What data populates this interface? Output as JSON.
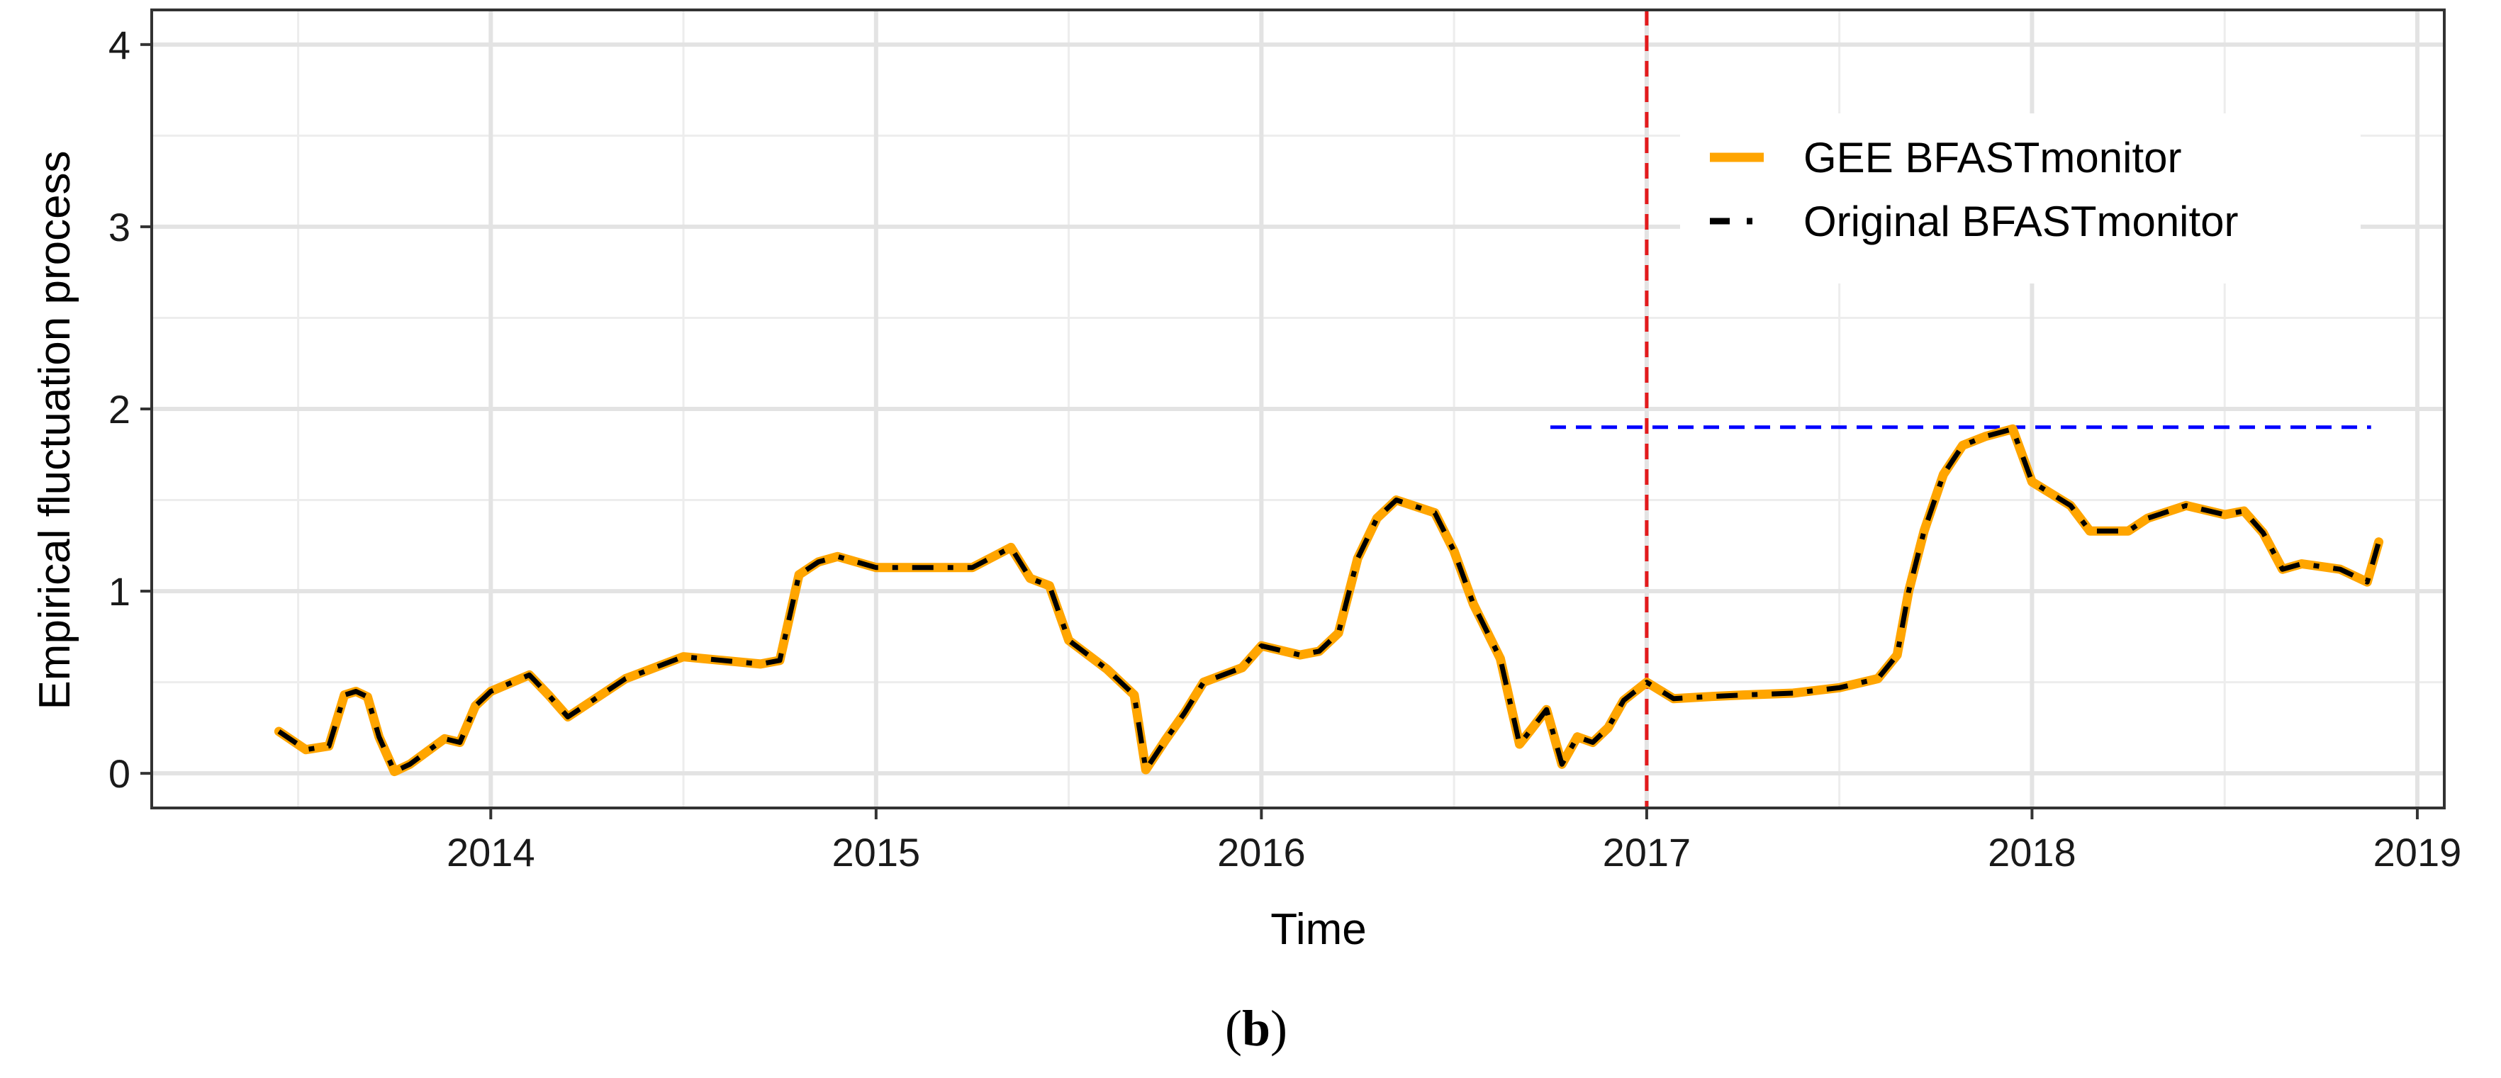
{
  "chart_data": {
    "type": "line",
    "title": "",
    "xlabel": "Time",
    "ylabel": "Empirical fluctuation process",
    "xlim": [
      2013.12,
      2019.07
    ],
    "ylim": [
      -0.19,
      4.19
    ],
    "xticks": [
      2014,
      2015,
      2016,
      2017,
      2018,
      2019
    ],
    "xtick_labels": [
      "2014",
      "2015",
      "2016",
      "2017",
      "2018",
      "2019"
    ],
    "yticks": [
      0,
      1,
      2,
      3,
      4
    ],
    "ytick_labels": [
      "0",
      "1",
      "2",
      "3",
      "4"
    ],
    "grid": true,
    "legend_position": "top-right",
    "series": [
      {
        "name": "GEE BFASTmonitor",
        "color": "#FFA500",
        "style": "solid",
        "x": [
          2013.45,
          2013.52,
          2013.58,
          2013.62,
          2013.65,
          2013.68,
          2013.71,
          2013.75,
          2013.79,
          2013.88,
          2013.92,
          2013.96,
          2014.0,
          2014.1,
          2014.15,
          2014.2,
          2014.35,
          2014.5,
          2014.7,
          2014.75,
          2014.8,
          2014.85,
          2014.9,
          2015.0,
          2015.1,
          2015.25,
          2015.35,
          2015.4,
          2015.45,
          2015.5,
          2015.6,
          2015.67,
          2015.7,
          2015.75,
          2015.8,
          2015.85,
          2015.95,
          2016.0,
          2016.1,
          2016.15,
          2016.2,
          2016.25,
          2016.3,
          2016.35,
          2016.45,
          2016.5,
          2016.55,
          2016.62,
          2016.67,
          2016.7,
          2016.74,
          2016.78,
          2016.82,
          2016.86,
          2016.9,
          2016.94,
          2017.0,
          2017.07,
          2017.15,
          2017.25,
          2017.38,
          2017.5,
          2017.6,
          2017.65,
          2017.68,
          2017.72,
          2017.77,
          2017.82,
          2017.88,
          2017.95,
          2018.0,
          2018.1,
          2018.15,
          2018.25,
          2018.3,
          2018.4,
          2018.5,
          2018.55,
          2018.6,
          2018.65,
          2018.7,
          2018.8,
          2018.87,
          2018.9
        ],
        "y": [
          0.23,
          0.13,
          0.15,
          0.43,
          0.45,
          0.42,
          0.2,
          0.01,
          0.05,
          0.19,
          0.17,
          0.37,
          0.45,
          0.54,
          0.43,
          0.31,
          0.52,
          0.64,
          0.6,
          0.62,
          1.09,
          1.16,
          1.19,
          1.13,
          1.13,
          1.13,
          1.24,
          1.07,
          1.03,
          0.73,
          0.57,
          0.43,
          0.02,
          0.18,
          0.33,
          0.5,
          0.58,
          0.7,
          0.65,
          0.67,
          0.77,
          1.18,
          1.4,
          1.5,
          1.43,
          1.22,
          0.93,
          0.63,
          0.16,
          0.24,
          0.35,
          0.05,
          0.2,
          0.17,
          0.25,
          0.4,
          0.5,
          0.41,
          0.42,
          0.43,
          0.44,
          0.47,
          0.52,
          0.65,
          1.0,
          1.33,
          1.64,
          1.8,
          1.85,
          1.89,
          1.6,
          1.47,
          1.33,
          1.33,
          1.4,
          1.47,
          1.42,
          1.44,
          1.32,
          1.12,
          1.15,
          1.12,
          1.05,
          1.27
        ]
      },
      {
        "name": "Original BFASTmonitor",
        "color": "#000000",
        "style": "dashed",
        "x": [
          2013.45,
          2013.52,
          2013.58,
          2013.62,
          2013.65,
          2013.68,
          2013.71,
          2013.75,
          2013.79,
          2013.88,
          2013.92,
          2013.96,
          2014.0,
          2014.1,
          2014.15,
          2014.2,
          2014.35,
          2014.5,
          2014.7,
          2014.75,
          2014.8,
          2014.85,
          2014.9,
          2015.0,
          2015.1,
          2015.25,
          2015.35,
          2015.4,
          2015.45,
          2015.5,
          2015.6,
          2015.67,
          2015.7,
          2015.75,
          2015.8,
          2015.85,
          2015.95,
          2016.0,
          2016.1,
          2016.15,
          2016.2,
          2016.25,
          2016.3,
          2016.35,
          2016.45,
          2016.5,
          2016.55,
          2016.62,
          2016.67,
          2016.7,
          2016.74,
          2016.78,
          2016.82,
          2016.86,
          2016.9,
          2016.94,
          2017.0,
          2017.07,
          2017.15,
          2017.25,
          2017.38,
          2017.5,
          2017.6,
          2017.65,
          2017.68,
          2017.72,
          2017.77,
          2017.82,
          2017.88,
          2017.95,
          2018.0,
          2018.1,
          2018.15,
          2018.25,
          2018.3,
          2018.4,
          2018.5,
          2018.55,
          2018.6,
          2018.65,
          2018.7,
          2018.8,
          2018.87,
          2018.9
        ],
        "y": [
          0.23,
          0.13,
          0.15,
          0.43,
          0.45,
          0.42,
          0.2,
          0.01,
          0.05,
          0.19,
          0.17,
          0.37,
          0.45,
          0.54,
          0.43,
          0.31,
          0.52,
          0.64,
          0.6,
          0.62,
          1.09,
          1.16,
          1.19,
          1.13,
          1.13,
          1.13,
          1.24,
          1.07,
          1.03,
          0.73,
          0.57,
          0.43,
          0.02,
          0.18,
          0.33,
          0.5,
          0.58,
          0.7,
          0.65,
          0.67,
          0.77,
          1.18,
          1.4,
          1.5,
          1.43,
          1.22,
          0.93,
          0.63,
          0.16,
          0.24,
          0.35,
          0.05,
          0.2,
          0.17,
          0.25,
          0.4,
          0.5,
          0.41,
          0.42,
          0.43,
          0.44,
          0.47,
          0.52,
          0.65,
          1.0,
          1.33,
          1.64,
          1.8,
          1.85,
          1.89,
          1.6,
          1.47,
          1.33,
          1.33,
          1.4,
          1.47,
          1.42,
          1.44,
          1.32,
          1.12,
          1.15,
          1.12,
          1.05,
          1.27
        ]
      }
    ],
    "annotations": {
      "vline": {
        "x": 2017.0,
        "color": "#E31A1C",
        "style": "dashed"
      },
      "hline": {
        "y": 1.9,
        "x_start": 2016.75,
        "x_end": 2018.88,
        "color": "#0000FF",
        "style": "dashed"
      }
    }
  },
  "caption": {
    "open": "(",
    "letter": "b",
    "close": ")"
  }
}
